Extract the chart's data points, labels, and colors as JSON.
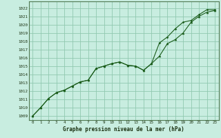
{
  "title": "Graphe pression niveau de la mer (hPa)",
  "bg_color": "#c8ede0",
  "grid_color": "#90c8b0",
  "line_color": "#1a5c1a",
  "spine_color": "#507850",
  "xlim": [
    -0.5,
    23.5
  ],
  "ylim": [
    1008.5,
    1022.8
  ],
  "xticks": [
    0,
    1,
    2,
    3,
    4,
    5,
    6,
    7,
    8,
    9,
    10,
    11,
    12,
    13,
    14,
    15,
    16,
    17,
    18,
    19,
    20,
    21,
    22,
    23
  ],
  "yticks": [
    1009,
    1010,
    1011,
    1012,
    1013,
    1014,
    1015,
    1016,
    1017,
    1018,
    1019,
    1020,
    1021,
    1022
  ],
  "line1_x": [
    0,
    1,
    2,
    3,
    4,
    5,
    6,
    7,
    8,
    9,
    10,
    11,
    12,
    13,
    14,
    15,
    16,
    17,
    18,
    19,
    20,
    21,
    22,
    23
  ],
  "line1_y": [
    1009.0,
    1010.0,
    1011.1,
    1011.8,
    1012.1,
    1012.6,
    1013.1,
    1013.3,
    1014.7,
    1015.0,
    1015.3,
    1015.5,
    1015.1,
    1015.0,
    1014.5,
    1015.3,
    1016.2,
    1017.7,
    1018.2,
    1019.0,
    1020.3,
    1021.0,
    1021.5,
    1021.7
  ],
  "line2_x": [
    0,
    1,
    2,
    3,
    4,
    5,
    6,
    7,
    8,
    9,
    10,
    11,
    12,
    13,
    14,
    15,
    16,
    17,
    18,
    19,
    20,
    21,
    22,
    23
  ],
  "line2_y": [
    1009.0,
    1010.0,
    1011.1,
    1011.8,
    1012.1,
    1012.6,
    1013.1,
    1013.3,
    1014.7,
    1015.0,
    1015.3,
    1015.5,
    1015.1,
    1015.0,
    1014.5,
    1015.3,
    1017.8,
    1018.5,
    1019.5,
    1020.3,
    1020.5,
    1021.2,
    1021.8,
    1021.8
  ],
  "tick_fontsize": 4.2,
  "xlabel_fontsize": 5.5,
  "title_color": "#1a3010"
}
